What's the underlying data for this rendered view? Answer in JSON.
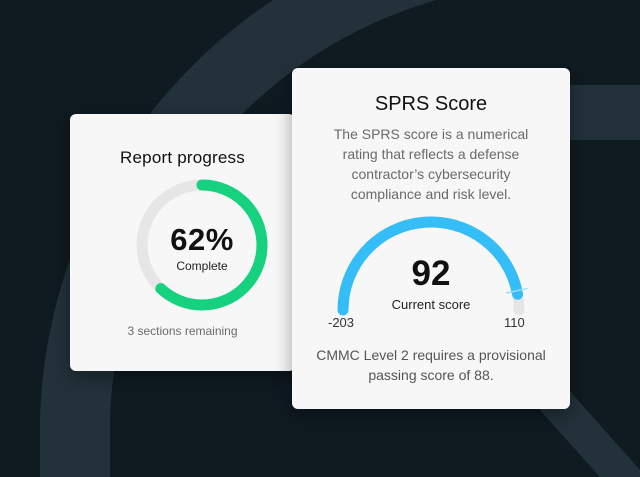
{
  "colors": {
    "background": "#0f1a21",
    "background_shape": "#22313a",
    "progress_green": "#16d17e",
    "gauge_blue": "#35bdf7",
    "track_grey": "#e6e6e6"
  },
  "progress_card": {
    "title": "Report progress",
    "percent_value": 62,
    "percent_label": "62%",
    "sub_label": "Complete",
    "remaining": "3 sections remaining"
  },
  "sprs_card": {
    "title": "SPRS Score",
    "description": "The SPRS score is a numerical rating that reflects a defense contractor’s cybersecurity compliance and risk level.",
    "score_value": 92,
    "score_label": "92",
    "score_sub": "Current score",
    "min_value": -203,
    "max_value": 110,
    "min_label": "-203",
    "max_label": "110",
    "passing_score": 88,
    "footer": "CMMC Level 2 requires a provisional passing score of 88."
  }
}
